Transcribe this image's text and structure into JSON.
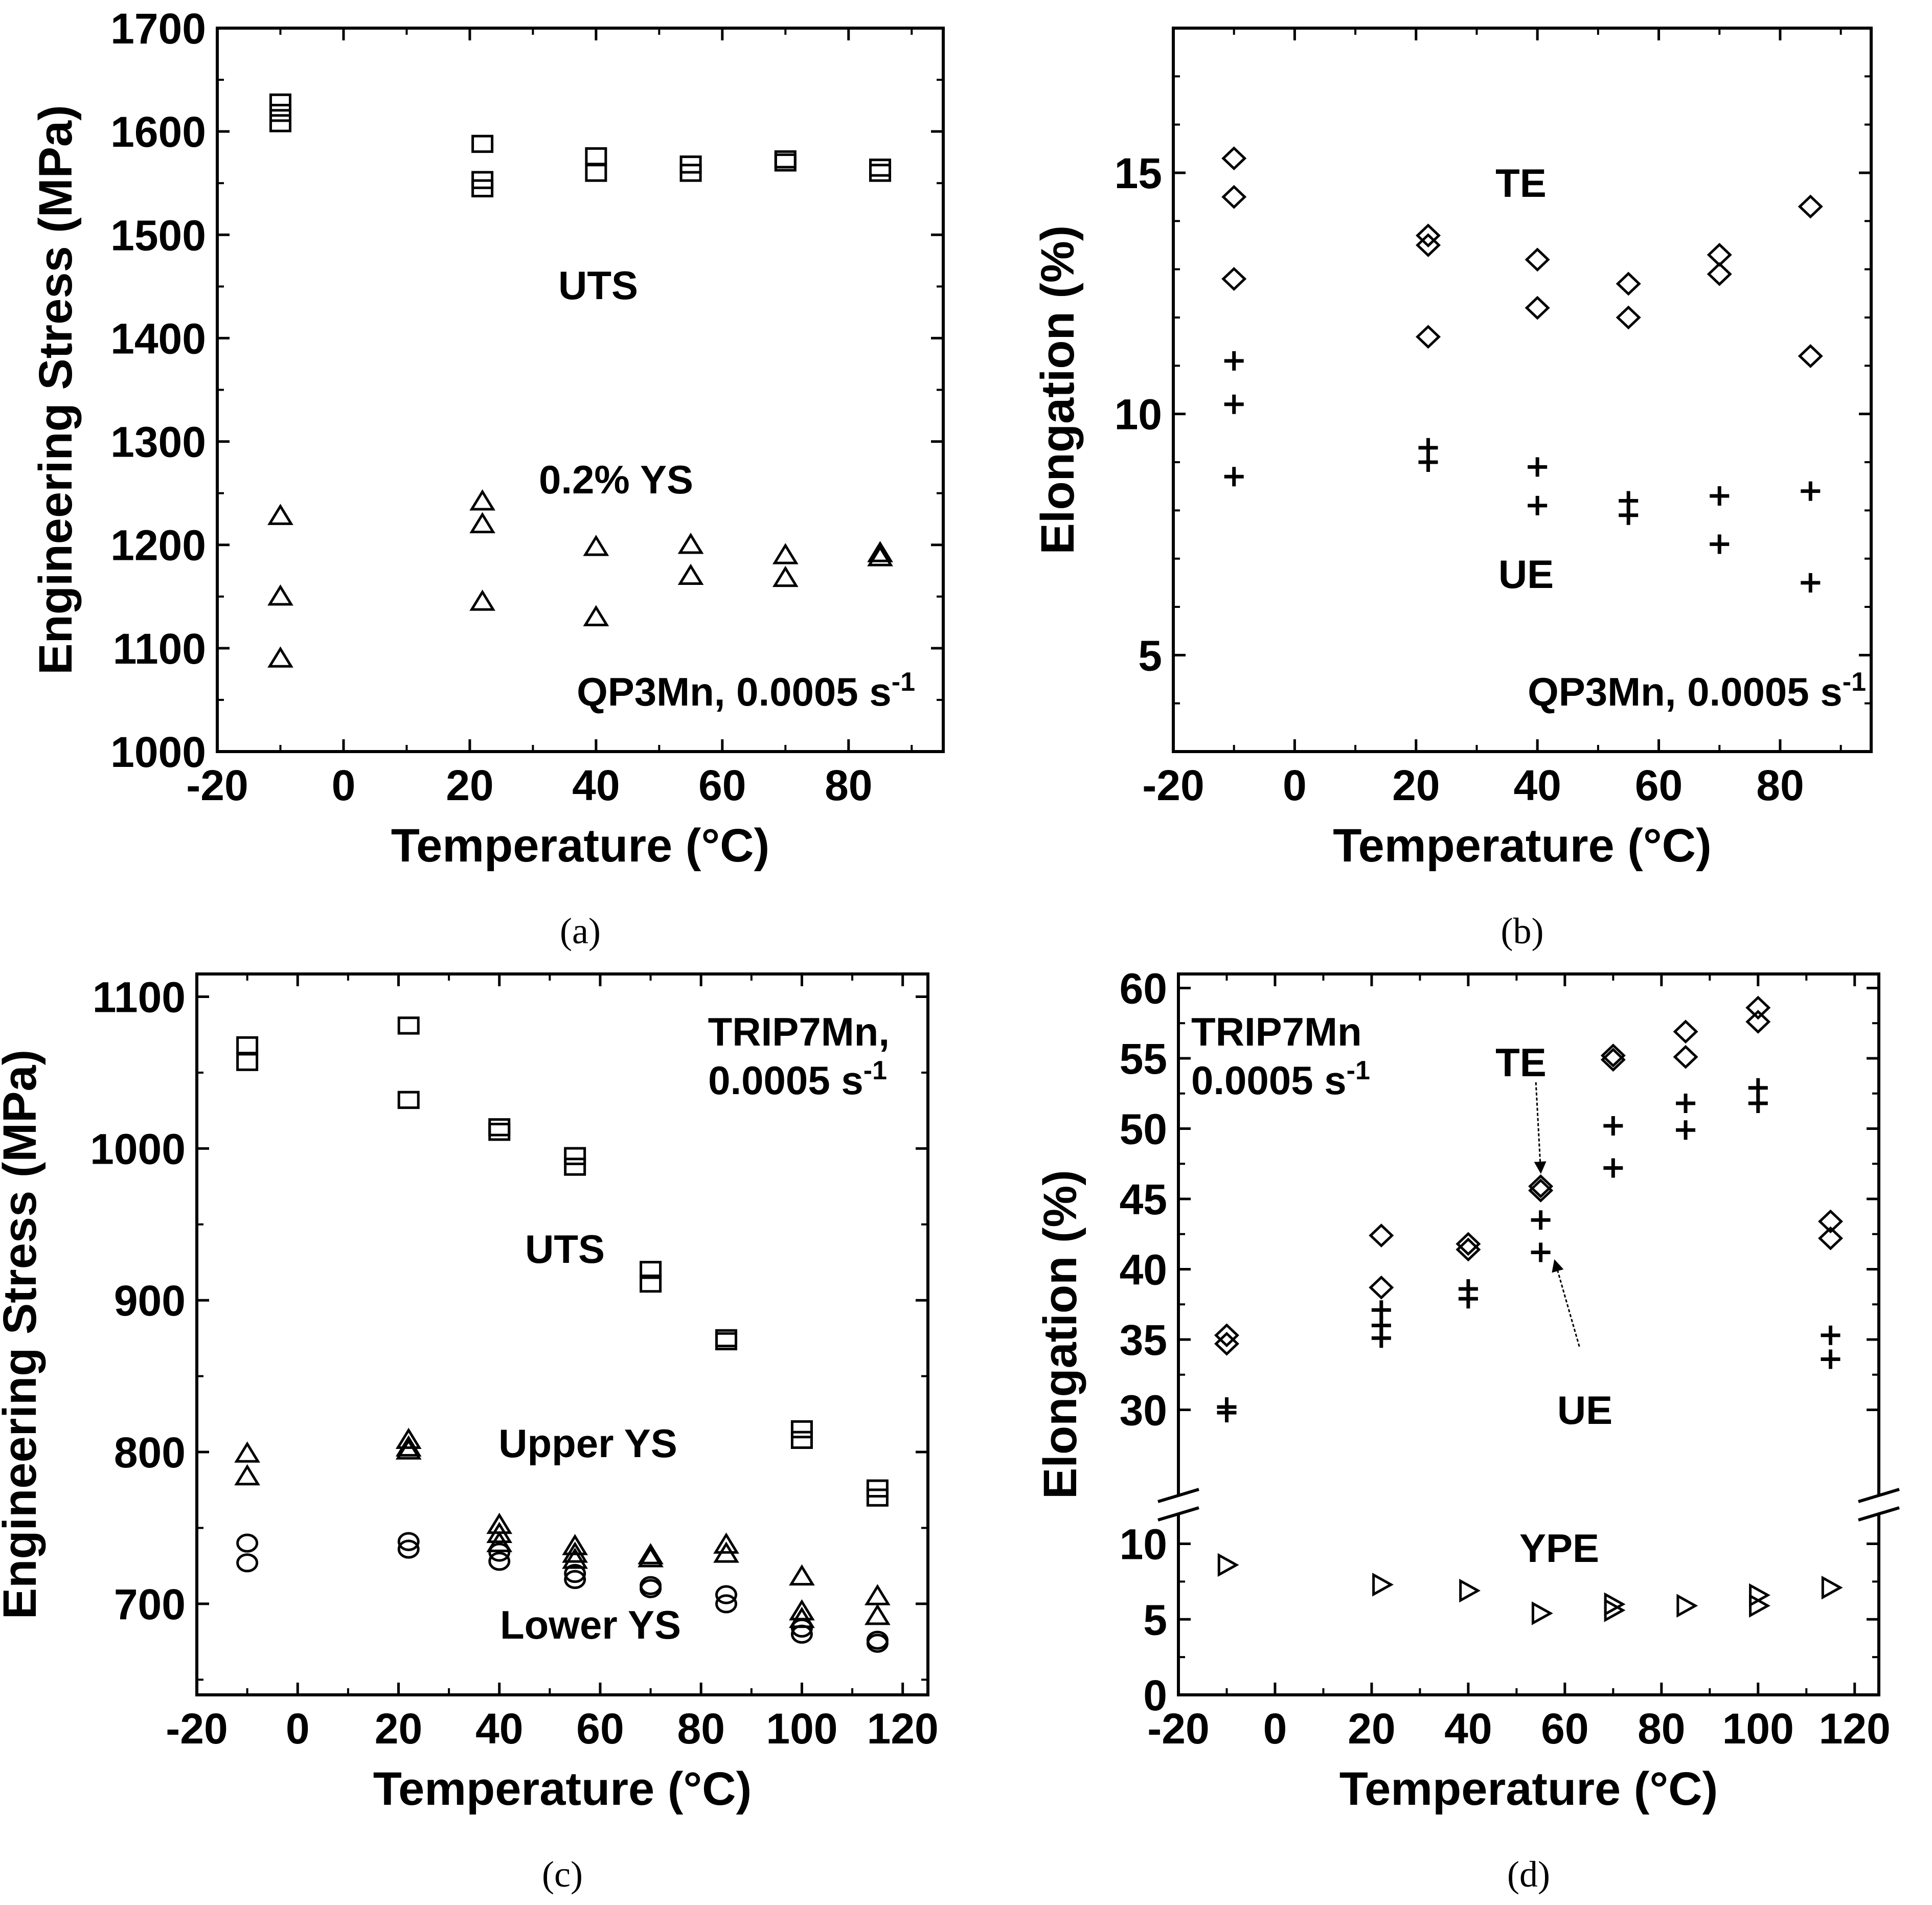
{
  "chart_data": [
    {
      "id": "a",
      "type": "scatter",
      "caption": "(a)",
      "xlabel": "Temperature (°C)",
      "ylabel": "Engineering Stress (MPa)",
      "xlim": [
        -20,
        95
      ],
      "ylim": [
        1000,
        1700
      ],
      "xticks": [
        -20,
        0,
        20,
        40,
        60,
        80
      ],
      "yticks": [
        1000,
        1100,
        1200,
        1300,
        1400,
        1500,
        1600,
        1700
      ],
      "series": [
        {
          "name": "UTS",
          "marker": "square",
          "x": [
            -10,
            -10,
            -10,
            22,
            22,
            22,
            40,
            40,
            55,
            55,
            70,
            70,
            85,
            85
          ],
          "y": [
            1628,
            1618,
            1608,
            1588,
            1553,
            1545,
            1576,
            1560,
            1568,
            1560,
            1573,
            1570,
            1565,
            1560
          ]
        },
        {
          "name": "0.2% YS",
          "marker": "triangle",
          "x": [
            -10,
            -10,
            -10,
            22,
            22,
            22,
            40,
            40,
            55,
            55,
            70,
            70,
            85,
            85
          ],
          "y": [
            1228,
            1150,
            1090,
            1242,
            1220,
            1145,
            1198,
            1130,
            1200,
            1170,
            1190,
            1168,
            1192,
            1188
          ]
        }
      ],
      "annotations": [
        {
          "text": "UTS",
          "x": 40,
          "y": 1450
        },
        {
          "text": "0.2% YS",
          "x": 38,
          "y": 1265
        },
        {
          "text": "QP3Mn, 0.0005 s-1",
          "x": 88,
          "y": 1045
        }
      ],
      "annotation_parts": {
        "base": "QP3Mn, 0.0005 s",
        "sup": "-1"
      }
    },
    {
      "id": "b",
      "type": "scatter",
      "caption": "(b)",
      "xlabel": "Temperature (°C)",
      "ylabel": "Elongation (%)",
      "xlim": [
        -20,
        95
      ],
      "ylim": [
        3,
        18
      ],
      "xticks": [
        -20,
        0,
        20,
        40,
        60,
        80
      ],
      "yticks": [
        5,
        10,
        15
      ],
      "series": [
        {
          "name": "TE",
          "marker": "diamond",
          "x": [
            -10,
            -10,
            -10,
            22,
            22,
            22,
            40,
            40,
            55,
            55,
            70,
            70,
            85,
            85
          ],
          "y": [
            15.3,
            14.5,
            12.8,
            13.7,
            13.5,
            11.6,
            13.2,
            12.2,
            12.7,
            12.0,
            13.3,
            12.9,
            14.3,
            11.2
          ]
        },
        {
          "name": "UE",
          "marker": "plus",
          "x": [
            -10,
            -10,
            -10,
            22,
            22,
            40,
            40,
            55,
            55,
            70,
            70,
            85,
            85
          ],
          "y": [
            11.1,
            10.2,
            8.7,
            9.3,
            9.0,
            8.9,
            8.1,
            8.2,
            7.9,
            8.3,
            7.3,
            8.4,
            6.5
          ]
        }
      ],
      "annotations": [
        {
          "text": "TE",
          "x": 30,
          "y": 14.8
        },
        {
          "text": "UE",
          "x": 35,
          "y": 6.7
        },
        {
          "text": "QP3Mn, 0.0005 s-1",
          "x": 88,
          "y": 4.1
        }
      ],
      "annotation_parts": {
        "base": "QP3Mn, 0.0005 s",
        "sup": "-1"
      }
    },
    {
      "id": "c",
      "type": "scatter",
      "caption": "(c)",
      "xlabel": "Temperature (°C)",
      "ylabel": "Engineering Stress (MPa)",
      "xlim": [
        -20,
        125
      ],
      "ylim": [
        640,
        1115
      ],
      "xticks": [
        -20,
        0,
        20,
        40,
        60,
        80,
        100,
        120
      ],
      "yticks": [
        700,
        800,
        900,
        1000,
        1100
      ],
      "series": [
        {
          "name": "UTS",
          "marker": "square",
          "x": [
            -10,
            -10,
            22,
            22,
            40,
            40,
            55,
            55,
            70,
            70,
            85,
            85,
            100,
            100,
            115,
            115
          ],
          "y": [
            1068,
            1057,
            1081,
            1032,
            1014,
            1011,
            995,
            988,
            920,
            911,
            875,
            873,
            815,
            808,
            776,
            770
          ]
        },
        {
          "name": "Upper YS",
          "marker": "triangle",
          "x": [
            -10,
            -10,
            22,
            22,
            22,
            40,
            40,
            40,
            55,
            55,
            55,
            70,
            70,
            85,
            85,
            100,
            100,
            100,
            115,
            115
          ],
          "y": [
            799,
            784,
            808,
            803,
            801,
            752,
            746,
            740,
            738,
            733,
            729,
            732,
            730,
            739,
            733,
            718,
            695,
            690,
            705,
            692
          ]
        },
        {
          "name": "Lower YS",
          "marker": "circle",
          "x": [
            -10,
            -10,
            22,
            22,
            40,
            40,
            55,
            55,
            70,
            70,
            85,
            85,
            100,
            100,
            115,
            115
          ],
          "y": [
            740,
            727,
            741,
            736,
            734,
            728,
            720,
            716,
            712,
            710,
            706,
            700,
            684,
            680,
            676,
            674
          ]
        }
      ],
      "annotations": [
        {
          "text": "TRIP7Mn,",
          "x": 113,
          "y": 1078
        },
        {
          "text": "0.0005 s-1",
          "x": 113,
          "y": 1042
        },
        {
          "text": "UTS",
          "x": 35,
          "y": 955
        },
        {
          "text": "Upper YS",
          "x": 35,
          "y": 787
        },
        {
          "text": "Lower YS",
          "x": 35,
          "y": 665
        }
      ],
      "annotation_parts": {
        "base": "0.0005 s",
        "sup": "-1"
      }
    },
    {
      "id": "d",
      "type": "scatter",
      "caption": "(d)",
      "xlabel": "Temperature (°C)",
      "ylabel": "Elongation (%)",
      "xlim": [
        -20,
        125
      ],
      "axis_break": true,
      "lower_ylim": [
        0,
        11
      ],
      "upper_ylim": [
        25,
        61
      ],
      "yticks": [
        0,
        5,
        10,
        30,
        35,
        40,
        45,
        50,
        55,
        60
      ],
      "xticks": [
        -20,
        0,
        20,
        40,
        60,
        80,
        100,
        120
      ],
      "series": [
        {
          "name": "TE",
          "marker": "diamond",
          "x": [
            -10,
            -10,
            22,
            22,
            40,
            40,
            55,
            55,
            70,
            70,
            85,
            85,
            100,
            100,
            115,
            115
          ],
          "y": [
            35.3,
            34.7,
            42.4,
            38.7,
            41.8,
            41.4,
            45.9,
            45.6,
            55.2,
            54.9,
            56.9,
            55.1,
            58.6,
            57.6,
            43.4,
            42.2
          ]
        },
        {
          "name": "UE",
          "marker": "plus",
          "x": [
            -10,
            -10,
            22,
            22,
            22,
            40,
            40,
            55,
            55,
            70,
            70,
            85,
            85,
            100,
            100,
            115,
            115
          ],
          "y": [
            30.2,
            29.8,
            37.1,
            36.0,
            35.1,
            38.6,
            37.9,
            43.5,
            41.2,
            50.2,
            47.2,
            51.8,
            49.9,
            52.9,
            51.8,
            35.3,
            33.6
          ]
        },
        {
          "name": "YPE",
          "marker": "triangle-right",
          "x": [
            -10,
            22,
            40,
            55,
            70,
            70,
            85,
            100,
            100,
            115
          ],
          "y": [
            8.6,
            7.3,
            6.9,
            5.4,
            6.0,
            5.6,
            5.9,
            6.6,
            5.9,
            7.1
          ]
        }
      ],
      "annotations": [
        {
          "text": "TRIP7Mn",
          "x": -12,
          "y": 58.5
        },
        {
          "text": "0.0005 s-1",
          "x": -12,
          "y": 55.0
        },
        {
          "text": "TE",
          "x": 54,
          "y": 55.5
        },
        {
          "text": "UE",
          "x": 65,
          "y": 32.2
        },
        {
          "text": "YPE",
          "x": 60,
          "y": 9.5
        }
      ],
      "annotation_parts": {
        "base": "0.0005 s",
        "sup": "-1"
      },
      "arrows": [
        {
          "from": [
            54,
            53.3
          ],
          "to": [
            55,
            47.0
          ],
          "label": "TE"
        },
        {
          "from": [
            63,
            34.5
          ],
          "to": [
            58,
            40.5
          ],
          "label": "UE"
        }
      ]
    }
  ]
}
